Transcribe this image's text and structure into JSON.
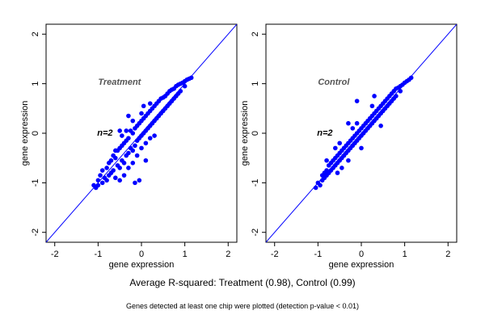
{
  "caption": {
    "summary": "Average R-squared: Treatment (0.98), Control (0.99)",
    "note": "Genes detected at least one chip were plotted (detection p-value < 0.01)"
  },
  "chart_data": [
    {
      "type": "scatter",
      "panel_label": "Treatment",
      "n_label": "n=2",
      "xlabel": "gene expression",
      "ylabel": "gene expression",
      "xlim": [
        -2.2,
        2.2
      ],
      "ylim": [
        -2.2,
        2.2
      ],
      "xticks": [
        -2,
        -1,
        0,
        1,
        2
      ],
      "yticks": [
        -2,
        -1,
        0,
        1,
        2
      ],
      "reference_line": {
        "slope": 1,
        "intercept": 0
      },
      "point_color": "#0000ff",
      "line_color": "#0000ff",
      "series": [
        {
          "values": [
            [
              -1.1,
              -1.05
            ],
            [
              -1.05,
              -1.1
            ],
            [
              -1.0,
              -0.95
            ],
            [
              -1.0,
              -1.05
            ],
            [
              -0.95,
              -0.85
            ],
            [
              -0.9,
              -1.0
            ],
            [
              -0.9,
              -0.75
            ],
            [
              -0.85,
              -0.9
            ],
            [
              -0.8,
              -0.7
            ],
            [
              -0.8,
              -0.95
            ],
            [
              -0.75,
              -0.6
            ],
            [
              -0.75,
              -0.85
            ],
            [
              -0.7,
              -0.55
            ],
            [
              -0.7,
              -0.8
            ],
            [
              -0.65,
              -0.45
            ],
            [
              -0.65,
              -0.75
            ],
            [
              -0.6,
              -0.5
            ],
            [
              -0.6,
              -0.9
            ],
            [
              -0.55,
              -0.35
            ],
            [
              -0.55,
              -0.65
            ],
            [
              -0.5,
              -0.3
            ],
            [
              -0.5,
              -0.7
            ],
            [
              -0.5,
              -0.95
            ],
            [
              -0.45,
              -0.25
            ],
            [
              -0.45,
              -0.55
            ],
            [
              -0.4,
              -0.2
            ],
            [
              -0.4,
              -0.6
            ],
            [
              -0.4,
              -0.85
            ],
            [
              -0.35,
              -0.15
            ],
            [
              -0.35,
              -0.45
            ],
            [
              -0.3,
              -0.1
            ],
            [
              -0.3,
              -0.4
            ],
            [
              -0.3,
              -0.7
            ],
            [
              -0.25,
              0.05
            ],
            [
              -0.25,
              -0.3
            ],
            [
              -0.2,
              0.0
            ],
            [
              -0.2,
              -0.35
            ],
            [
              -0.2,
              -0.6
            ],
            [
              -0.15,
              0.1
            ],
            [
              -0.15,
              -0.25
            ],
            [
              -0.1,
              0.15
            ],
            [
              -0.1,
              -0.15
            ],
            [
              -0.1,
              -0.45
            ],
            [
              -0.05,
              0.2
            ],
            [
              -0.05,
              -0.1
            ],
            [
              0.0,
              0.25
            ],
            [
              0.0,
              -0.05
            ],
            [
              0.0,
              -0.3
            ],
            [
              0.05,
              0.3
            ],
            [
              0.05,
              0.0
            ],
            [
              0.1,
              0.35
            ],
            [
              0.1,
              0.05
            ],
            [
              0.1,
              -0.2
            ],
            [
              0.15,
              0.4
            ],
            [
              0.15,
              0.1
            ],
            [
              0.2,
              0.45
            ],
            [
              0.2,
              0.15
            ],
            [
              0.2,
              -0.1
            ],
            [
              0.25,
              0.5
            ],
            [
              0.25,
              0.2
            ],
            [
              0.3,
              0.55
            ],
            [
              0.3,
              0.25
            ],
            [
              0.35,
              0.6
            ],
            [
              0.35,
              0.3
            ],
            [
              0.4,
              0.65
            ],
            [
              0.4,
              0.35
            ],
            [
              0.45,
              0.7
            ],
            [
              0.45,
              0.4
            ],
            [
              0.5,
              0.72
            ],
            [
              0.5,
              0.45
            ],
            [
              0.55,
              0.75
            ],
            [
              0.55,
              0.5
            ],
            [
              0.6,
              0.8
            ],
            [
              0.6,
              0.55
            ],
            [
              0.65,
              0.85
            ],
            [
              0.65,
              0.6
            ],
            [
              0.7,
              0.88
            ],
            [
              0.7,
              0.65
            ],
            [
              0.75,
              0.9
            ],
            [
              0.75,
              0.7
            ],
            [
              0.8,
              0.95
            ],
            [
              0.8,
              0.75
            ],
            [
              0.85,
              0.98
            ],
            [
              0.85,
              0.8
            ],
            [
              0.9,
              1.0
            ],
            [
              0.9,
              0.85
            ],
            [
              0.95,
              1.02
            ],
            [
              1.0,
              1.05
            ],
            [
              1.0,
              0.95
            ],
            [
              1.05,
              1.08
            ],
            [
              1.1,
              1.1
            ],
            [
              1.15,
              1.12
            ],
            [
              -0.15,
              -1.0
            ],
            [
              -0.05,
              -0.95
            ],
            [
              0.1,
              -0.55
            ],
            [
              0.3,
              -0.05
            ],
            [
              -0.35,
              0.05
            ],
            [
              -0.45,
              -0.05
            ],
            [
              -0.2,
              0.25
            ],
            [
              -0.3,
              0.35
            ],
            [
              0.0,
              0.4
            ],
            [
              -0.6,
              -0.35
            ],
            [
              0.2,
              0.6
            ],
            [
              0.05,
              0.55
            ],
            [
              -0.5,
              0.05
            ]
          ]
        }
      ]
    },
    {
      "type": "scatter",
      "panel_label": "Control",
      "n_label": "n=2",
      "xlabel": "gene expression",
      "ylabel": "gene expression",
      "xlim": [
        -2.2,
        2.2
      ],
      "ylim": [
        -2.2,
        2.2
      ],
      "xticks": [
        -2,
        -1,
        0,
        1,
        2
      ],
      "yticks": [
        -2,
        -1,
        0,
        1,
        2
      ],
      "reference_line": {
        "slope": 1,
        "intercept": 0
      },
      "point_color": "#0000ff",
      "line_color": "#0000ff",
      "series": [
        {
          "values": [
            [
              -1.05,
              -1.1
            ],
            [
              -1.0,
              -1.0
            ],
            [
              -0.95,
              -1.05
            ],
            [
              -0.9,
              -0.85
            ],
            [
              -0.9,
              -0.95
            ],
            [
              -0.85,
              -0.8
            ],
            [
              -0.85,
              -0.9
            ],
            [
              -0.8,
              -0.75
            ],
            [
              -0.8,
              -0.85
            ],
            [
              -0.75,
              -0.65
            ],
            [
              -0.75,
              -0.8
            ],
            [
              -0.7,
              -0.6
            ],
            [
              -0.7,
              -0.75
            ],
            [
              -0.65,
              -0.55
            ],
            [
              -0.65,
              -0.7
            ],
            [
              -0.6,
              -0.5
            ],
            [
              -0.6,
              -0.65
            ],
            [
              -0.55,
              -0.45
            ],
            [
              -0.55,
              -0.6
            ],
            [
              -0.5,
              -0.4
            ],
            [
              -0.5,
              -0.55
            ],
            [
              -0.45,
              -0.35
            ],
            [
              -0.45,
              -0.5
            ],
            [
              -0.4,
              -0.3
            ],
            [
              -0.4,
              -0.45
            ],
            [
              -0.35,
              -0.25
            ],
            [
              -0.35,
              -0.4
            ],
            [
              -0.3,
              -0.2
            ],
            [
              -0.3,
              -0.35
            ],
            [
              -0.25,
              -0.15
            ],
            [
              -0.25,
              -0.3
            ],
            [
              -0.2,
              -0.1
            ],
            [
              -0.2,
              -0.25
            ],
            [
              -0.15,
              -0.05
            ],
            [
              -0.15,
              -0.2
            ],
            [
              -0.1,
              0.0
            ],
            [
              -0.1,
              -0.15
            ],
            [
              -0.05,
              0.05
            ],
            [
              -0.05,
              -0.1
            ],
            [
              0.0,
              0.1
            ],
            [
              0.0,
              -0.05
            ],
            [
              0.05,
              0.15
            ],
            [
              0.05,
              0.0
            ],
            [
              0.1,
              0.2
            ],
            [
              0.1,
              0.05
            ],
            [
              0.15,
              0.25
            ],
            [
              0.15,
              0.1
            ],
            [
              0.2,
              0.3
            ],
            [
              0.2,
              0.15
            ],
            [
              0.25,
              0.35
            ],
            [
              0.25,
              0.2
            ],
            [
              0.3,
              0.4
            ],
            [
              0.3,
              0.25
            ],
            [
              0.35,
              0.45
            ],
            [
              0.35,
              0.3
            ],
            [
              0.4,
              0.5
            ],
            [
              0.4,
              0.35
            ],
            [
              0.45,
              0.55
            ],
            [
              0.45,
              0.4
            ],
            [
              0.5,
              0.6
            ],
            [
              0.5,
              0.45
            ],
            [
              0.55,
              0.65
            ],
            [
              0.55,
              0.5
            ],
            [
              0.6,
              0.7
            ],
            [
              0.6,
              0.55
            ],
            [
              0.65,
              0.75
            ],
            [
              0.65,
              0.6
            ],
            [
              0.7,
              0.8
            ],
            [
              0.7,
              0.65
            ],
            [
              0.75,
              0.85
            ],
            [
              0.75,
              0.7
            ],
            [
              0.8,
              0.9
            ],
            [
              0.8,
              0.75
            ],
            [
              0.85,
              0.92
            ],
            [
              0.9,
              0.95
            ],
            [
              0.9,
              0.85
            ],
            [
              0.95,
              0.98
            ],
            [
              1.0,
              1.02
            ],
            [
              1.05,
              1.05
            ],
            [
              1.1,
              1.08
            ],
            [
              1.15,
              1.12
            ],
            [
              -0.55,
              -0.8
            ],
            [
              -0.3,
              -0.55
            ],
            [
              -0.8,
              -0.55
            ],
            [
              -0.2,
              0.1
            ],
            [
              0.0,
              -0.3
            ],
            [
              0.25,
              0.55
            ],
            [
              0.45,
              0.15
            ],
            [
              -0.6,
              -0.3
            ],
            [
              -0.1,
              0.2
            ],
            [
              0.3,
              0.75
            ],
            [
              -0.45,
              -0.7
            ],
            [
              -0.3,
              0.2
            ],
            [
              -0.1,
              0.65
            ],
            [
              -0.5,
              -0.2
            ]
          ]
        }
      ]
    }
  ]
}
